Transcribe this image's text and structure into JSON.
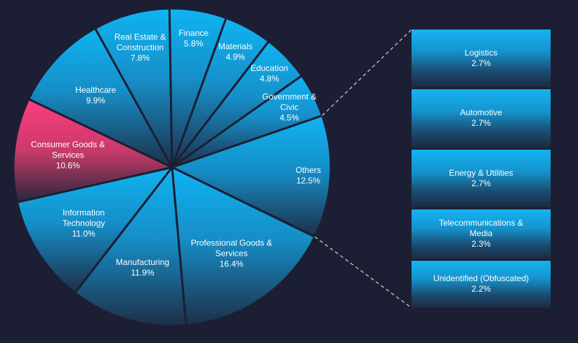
{
  "chart_data": {
    "type": "bar-of-pie",
    "pie": [
      {
        "label": "Others",
        "value": 12.5,
        "pct_text": "12.5%"
      },
      {
        "label": "Professional Goods & Services",
        "value": 16.4,
        "pct_text": "16.4%"
      },
      {
        "label": "Manufacturing",
        "value": 11.9,
        "pct_text": "11.9%"
      },
      {
        "label": "Information Technology",
        "value": 11.0,
        "pct_text": "11.0%"
      },
      {
        "label": "Consumer Goods & Services",
        "value": 10.6,
        "pct_text": "10.6%",
        "highlight": true
      },
      {
        "label": "Healthcare",
        "value": 9.9,
        "pct_text": "9.9%"
      },
      {
        "label": "Real Estate & Construction",
        "value": 7.8,
        "pct_text": "7.8%"
      },
      {
        "label": "Finance",
        "value": 5.8,
        "pct_text": "5.8%"
      },
      {
        "label": "Materials",
        "value": 4.9,
        "pct_text": "4.9%"
      },
      {
        "label": "Education",
        "value": 4.8,
        "pct_text": "4.8%"
      },
      {
        "label": "Government & Civic",
        "value": 4.5,
        "pct_text": "4.5%"
      }
    ],
    "others_breakdown": [
      {
        "label": "Logistics",
        "value": 2.7,
        "pct_text": "2.7%"
      },
      {
        "label": "Automotive",
        "value": 2.7,
        "pct_text": "2.7%"
      },
      {
        "label": "Energy & Utilities",
        "value": 2.7,
        "pct_text": "2.7%"
      },
      {
        "label": "Telecommunications & Media",
        "value": 2.3,
        "pct_text": "2.3%"
      },
      {
        "label": "Unidentified (Obfuscated)",
        "value": 2.2,
        "pct_text": "2.2%"
      }
    ],
    "colors": {
      "background": "#1c1f33",
      "slice_top": "#0fb4f3",
      "slice_bottom": "#1d2e47",
      "highlight_top": "#ff3d7f",
      "highlight_bottom": "#26283d",
      "separator": "#1c1f33",
      "connector": "#c8c8c8"
    }
  }
}
